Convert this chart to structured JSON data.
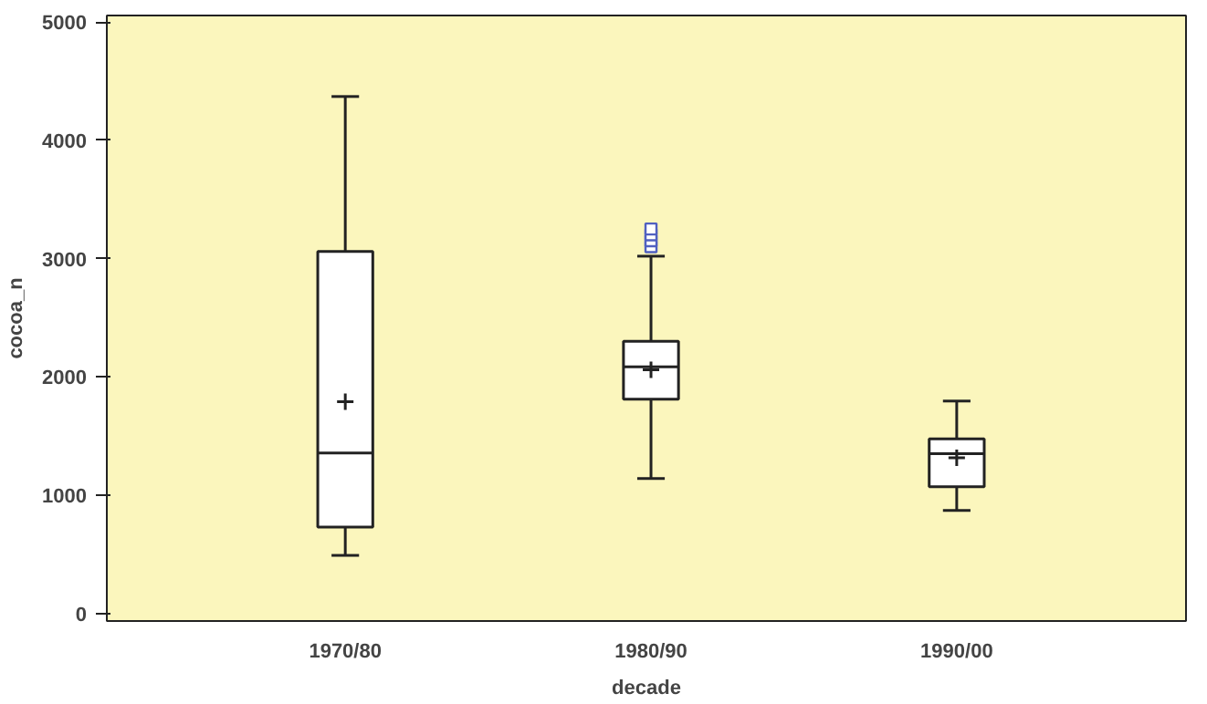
{
  "chart_data": {
    "type": "box",
    "xlabel": "decade",
    "ylabel": "cocoa_n",
    "categories": [
      "1970/80",
      "1980/90",
      "1990/00"
    ],
    "boxes": [
      {
        "low": 490,
        "q1": 730,
        "median": 1355,
        "q3": 3060,
        "high": 4370,
        "mean": 1790
      },
      {
        "low": 1140,
        "q1": 1810,
        "median": 2085,
        "q3": 2300,
        "high": 3020,
        "mean": 2060,
        "outliers": [
          3100,
          3150,
          3200,
          3250
        ]
      },
      {
        "low": 870,
        "q1": 1070,
        "median": 1350,
        "q3": 1475,
        "high": 1795,
        "mean": 1315
      }
    ],
    "color": "#ffffff",
    "ylim": [
      -65,
      5055
    ],
    "yticks": [
      0,
      1000,
      2000,
      3000,
      4000,
      5000
    ],
    "grid": false
  }
}
